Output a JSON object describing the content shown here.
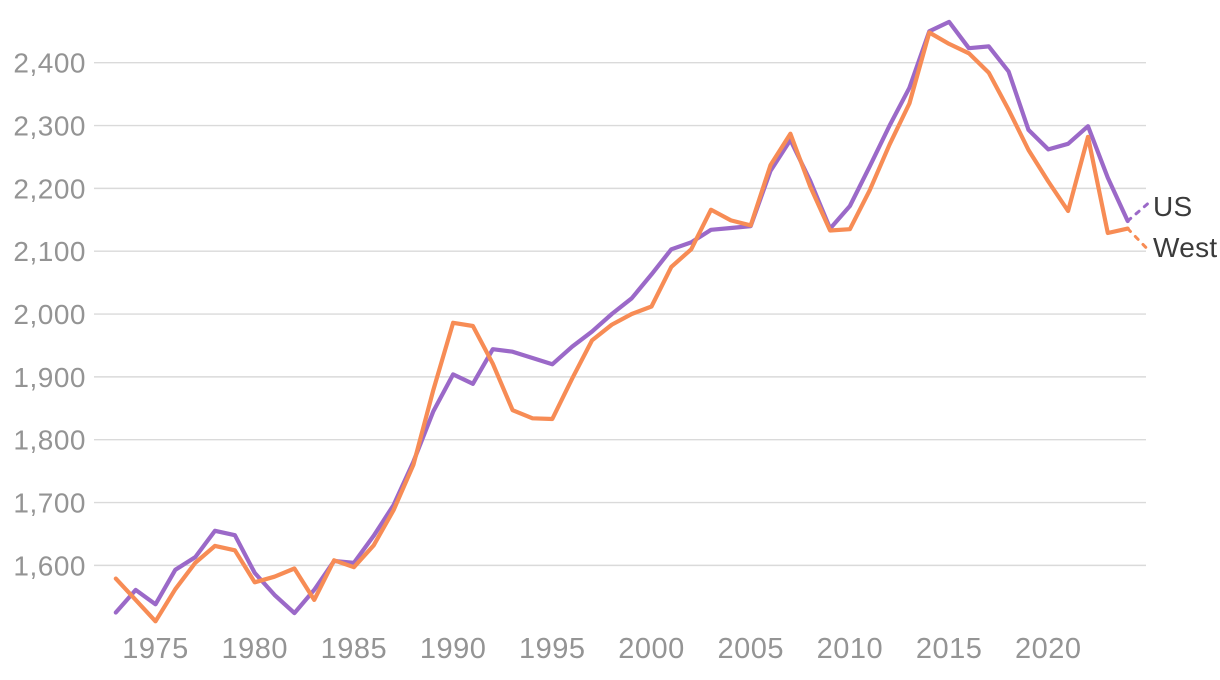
{
  "chart_data": {
    "type": "line",
    "x": [
      1973,
      1974,
      1975,
      1976,
      1977,
      1978,
      1979,
      1980,
      1981,
      1982,
      1983,
      1984,
      1985,
      1986,
      1987,
      1988,
      1989,
      1990,
      1991,
      1992,
      1993,
      1994,
      1995,
      1996,
      1997,
      1998,
      1999,
      2000,
      2001,
      2002,
      2003,
      2004,
      2005,
      2006,
      2007,
      2008,
      2009,
      2010,
      2011,
      2012,
      2013,
      2014,
      2015,
      2016,
      2017,
      2018,
      2019,
      2020,
      2021,
      2022,
      2023,
      2024
    ],
    "series": [
      {
        "name": "US",
        "color": "#9b69c8",
        "values": [
          1525,
          1561,
          1538,
          1593,
          1613,
          1655,
          1648,
          1588,
          1553,
          1524,
          1561,
          1607,
          1604,
          1647,
          1696,
          1765,
          1845,
          1904,
          1889,
          1944,
          1940,
          1930,
          1920,
          1948,
          1972,
          2000,
          2025,
          2063,
          2103,
          2114,
          2134,
          2137,
          2140,
          2228,
          2277,
          2212,
          2136,
          2172,
          2235,
          2300,
          2360,
          2450,
          2465,
          2423,
          2426,
          2386,
          2293,
          2262,
          2271,
          2299,
          2217,
          2148
        ]
      },
      {
        "name": "West",
        "color": "#f78c55",
        "values": [
          1579,
          1545,
          1511,
          1562,
          1604,
          1631,
          1624,
          1573,
          1582,
          1595,
          1545,
          1608,
          1597,
          1632,
          1688,
          1760,
          1879,
          1986,
          1981,
          1921,
          1847,
          1834,
          1833,
          1897,
          1958,
          1983,
          2000,
          2012,
          2075,
          2103,
          2166,
          2149,
          2141,
          2237,
          2287,
          2203,
          2133,
          2135,
          2197,
          2270,
          2335,
          2448,
          2430,
          2415,
          2384,
          2325,
          2261,
          2211,
          2164,
          2282,
          2129,
          2136
        ]
      }
    ],
    "projection_tails": [
      {
        "series": "US",
        "x": [
          2024,
          2025.1
        ],
        "values": [
          2148,
          2178
        ]
      },
      {
        "series": "West",
        "x": [
          2024,
          2025.1
        ],
        "values": [
          2136,
          2100
        ]
      }
    ],
    "y_ticks": [
      {
        "value": 1600,
        "label": "1,600"
      },
      {
        "value": 1700,
        "label": "1,700"
      },
      {
        "value": 1800,
        "label": "1,800"
      },
      {
        "value": 1900,
        "label": "1,900"
      },
      {
        "value": 2000,
        "label": "2,000"
      },
      {
        "value": 2100,
        "label": "2,100"
      },
      {
        "value": 2200,
        "label": "2,200"
      },
      {
        "value": 2300,
        "label": "2,300"
      },
      {
        "value": 2400,
        "label": "2,400"
      }
    ],
    "x_ticks": [
      {
        "value": 1975,
        "label": "1975"
      },
      {
        "value": 1980,
        "label": "1980"
      },
      {
        "value": 1985,
        "label": "1985"
      },
      {
        "value": 1990,
        "label": "1990"
      },
      {
        "value": 1995,
        "label": "1995"
      },
      {
        "value": 2000,
        "label": "2000"
      },
      {
        "value": 2005,
        "label": "2005"
      },
      {
        "value": 2010,
        "label": "2010"
      },
      {
        "value": 2015,
        "label": "2015"
      },
      {
        "value": 2020,
        "label": "2020"
      }
    ],
    "xlim": [
      1973,
      2025.3
    ],
    "ylim": [
      1500,
      2470
    ],
    "grid": "horizontal",
    "legend_position": "right-end-of-line",
    "colors": {
      "grid": "#dadada",
      "tick_text": "#949494",
      "label_text": "#3b3b3b",
      "background": "#ffffff"
    }
  }
}
